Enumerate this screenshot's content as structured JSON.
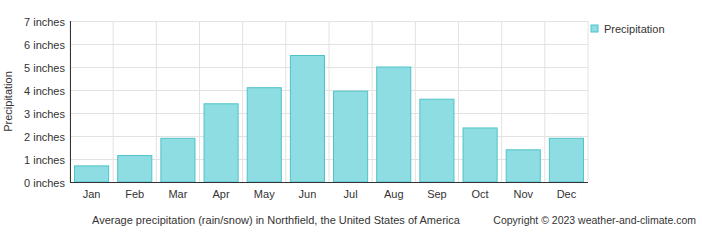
{
  "chart_data": {
    "type": "bar",
    "title": "Average precipitation (rain/snow) in Northfield, the United States of America",
    "annotations": [
      "Copyright © 2023  weather-and-climate.com"
    ],
    "y_label": "Precipitation",
    "categories": [
      "Jan",
      "Feb",
      "Mar",
      "Apr",
      "May",
      "Jun",
      "Jul",
      "Aug",
      "Sep",
      "Oct",
      "Nov",
      "Dec"
    ],
    "series": [
      {
        "name": "Precipitation",
        "color": "#8ddde2",
        "values": [
          0.7,
          1.15,
          1.9,
          3.4,
          4.1,
          5.5,
          3.95,
          5.0,
          3.6,
          2.35,
          1.4,
          1.9
        ]
      }
    ],
    "ylim": [
      0,
      7
    ],
    "yticks": [
      {
        "value": 0,
        "label": "0 inches"
      },
      {
        "value": 1,
        "label": "1 inches"
      },
      {
        "value": 2,
        "label": "2 inches"
      },
      {
        "value": 3,
        "label": "3 inches"
      },
      {
        "value": 4,
        "label": "4 inches"
      },
      {
        "value": 5,
        "label": "5 inches"
      },
      {
        "value": 6,
        "label": "6 inches"
      },
      {
        "value": 7,
        "label": "7 inches"
      }
    ],
    "grid": true,
    "legend": "top-right"
  }
}
